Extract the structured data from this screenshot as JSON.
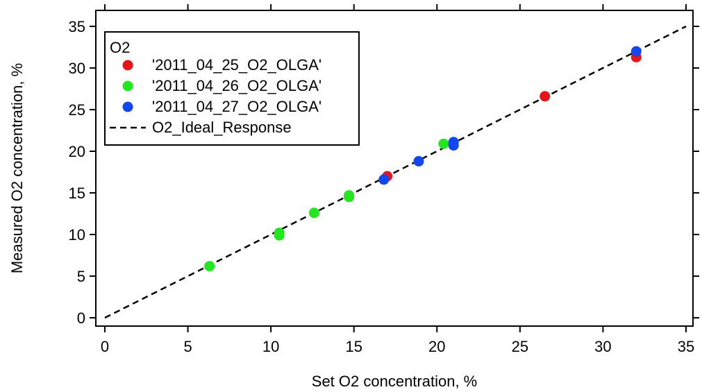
{
  "chart_data": {
    "type": "scatter",
    "xlabel": "Set O2 concentration, %",
    "ylabel": "Measured O2 concentration, %",
    "xlim": [
      0,
      35
    ],
    "ylim": [
      0,
      35
    ],
    "x_ticks": [
      0,
      5,
      10,
      15,
      20,
      25,
      30,
      35
    ],
    "y_ticks": [
      0,
      5,
      10,
      15,
      20,
      25,
      30,
      35
    ],
    "grid": false,
    "legend": {
      "title": "O2",
      "placement": "top-left"
    },
    "series": [
      {
        "name": "'2011_04_25_O2_OLGA'",
        "color": "#e8141c",
        "points": [
          [
            17.0,
            17.0
          ],
          [
            26.5,
            26.6
          ],
          [
            32.0,
            31.3
          ]
        ]
      },
      {
        "name": "'2011_04_26_O2_OLGA'",
        "color": "#22e61e",
        "points": [
          [
            6.3,
            6.2
          ],
          [
            10.5,
            10.2
          ],
          [
            10.5,
            9.9
          ],
          [
            12.6,
            12.6
          ],
          [
            14.7,
            14.7
          ],
          [
            14.7,
            14.5
          ],
          [
            20.4,
            20.9
          ]
        ]
      },
      {
        "name": "'2011_04_27_O2_OLGA'",
        "color": "#1446f0",
        "points": [
          [
            16.8,
            16.6
          ],
          [
            18.9,
            18.8
          ],
          [
            21.0,
            21.1
          ],
          [
            21.0,
            20.7
          ],
          [
            32.0,
            32.0
          ]
        ]
      }
    ],
    "reference_line": {
      "name": "O2_Ideal_Response",
      "color": "#000000",
      "style": "dashed",
      "x": [
        0,
        35
      ],
      "y": [
        0,
        35
      ]
    }
  }
}
